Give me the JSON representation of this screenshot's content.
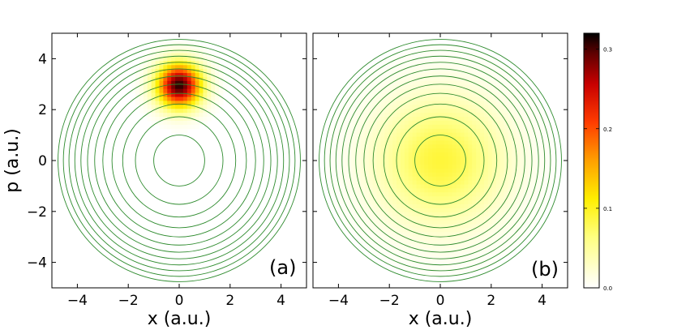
{
  "chart_data": [
    {
      "type": "heatmap",
      "panel_label": "(a)",
      "xlabel": "x (a.u.)",
      "ylabel": "p (a.u.)",
      "xlim": [
        -5,
        5
      ],
      "ylim": [
        -5,
        5
      ],
      "xticks": [
        -4,
        -2,
        0,
        2,
        4
      ],
      "yticks": [
        -4,
        -2,
        0,
        2,
        4
      ],
      "xtick_labels": [
        "−4",
        "−2",
        "0",
        "2",
        "4"
      ],
      "ytick_labels": [
        "−4",
        "−2",
        "0",
        "2",
        "4"
      ],
      "density": {
        "shape": "gaussian",
        "center": [
          0,
          2.95
        ],
        "sigma": 0.6,
        "peak": 0.31
      },
      "contours": {
        "color": "#2e8b2e",
        "center": [
          0,
          0
        ],
        "radii": [
          1.0,
          1.72,
          2.22,
          2.64,
          3.0,
          3.32,
          3.6,
          3.86,
          4.1,
          4.33,
          4.55,
          4.76
        ]
      }
    },
    {
      "type": "heatmap",
      "panel_label": "(b)",
      "xlabel": "x (a.u.)",
      "ylabel": "",
      "xlim": [
        -5,
        5
      ],
      "ylim": [
        -5,
        5
      ],
      "xticks": [
        -4,
        -2,
        0,
        2,
        4
      ],
      "yticks": [
        -4,
        -2,
        0,
        2,
        4
      ],
      "xtick_labels": [
        "−4",
        "−2",
        "0",
        "2",
        "4"
      ],
      "ytick_labels": [],
      "density": {
        "shape": "thermal",
        "center": [
          0,
          0
        ],
        "sigma": 1.75,
        "peak": 0.09
      },
      "contours": {
        "color": "#2e8b2e",
        "center": [
          0,
          0
        ],
        "radii": [
          1.0,
          1.72,
          2.22,
          2.64,
          3.0,
          3.32,
          3.6,
          3.86,
          4.1,
          4.33,
          4.55,
          4.76
        ]
      }
    }
  ],
  "colorbar": {
    "min": 0.0,
    "max": 0.32,
    "ticks": [
      0.0,
      0.1,
      0.2,
      0.3
    ],
    "tick_labels": [
      "0.0",
      "0.1",
      "0.2",
      "0.3"
    ],
    "colormap": "hot_r"
  }
}
